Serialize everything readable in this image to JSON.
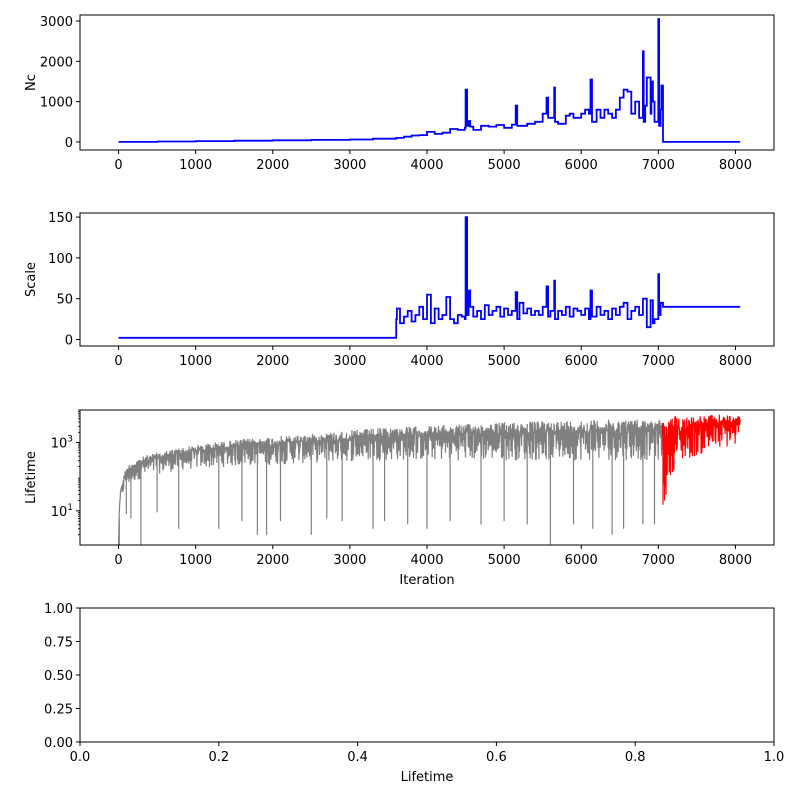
{
  "chart_data": [
    {
      "type": "line",
      "title": "",
      "xlabel": "",
      "ylabel": "Nc",
      "xlim": [
        -500,
        8500
      ],
      "ylim": [
        -200,
        3150
      ],
      "yscale": "linear",
      "grid": false,
      "xticks": [
        0,
        1000,
        2000,
        3000,
        4000,
        5000,
        6000,
        7000,
        8000
      ],
      "xtick_labels": [
        "0",
        "1000",
        "2000",
        "3000",
        "4000",
        "5000",
        "6000",
        "7000",
        "8000"
      ],
      "yticks": [
        0,
        1000,
        2000,
        3000
      ],
      "ytick_labels": [
        "0",
        "1000",
        "2000",
        "3000"
      ],
      "series": [
        {
          "color": "#0000ff",
          "style": "step",
          "x": [
            0,
            500,
            1000,
            1500,
            2000,
            2500,
            3000,
            3300,
            3600,
            3700,
            3800,
            3900,
            4000,
            4100,
            4200,
            4300,
            4400,
            4490,
            4500,
            4520,
            4540,
            4560,
            4600,
            4700,
            4800,
            4900,
            5000,
            5100,
            5150,
            5170,
            5200,
            5300,
            5400,
            5500,
            5550,
            5570,
            5600,
            5650,
            5660,
            5700,
            5800,
            5850,
            5900,
            6000,
            6050,
            6100,
            6120,
            6140,
            6200,
            6250,
            6300,
            6350,
            6400,
            6450,
            6500,
            6550,
            6600,
            6650,
            6700,
            6750,
            6800,
            6810,
            6830,
            6850,
            6900,
            6910,
            6930,
            6950,
            7000,
            7010,
            7030,
            7040,
            7060,
            7070,
            7200,
            8060
          ],
          "y": [
            0,
            10,
            20,
            30,
            40,
            50,
            60,
            80,
            100,
            130,
            160,
            170,
            250,
            200,
            230,
            320,
            300,
            350,
            1300,
            400,
            520,
            380,
            300,
            400,
            380,
            420,
            350,
            430,
            900,
            400,
            400,
            450,
            500,
            700,
            1100,
            600,
            600,
            1350,
            500,
            450,
            650,
            700,
            600,
            700,
            800,
            700,
            1550,
            500,
            800,
            600,
            800,
            700,
            600,
            800,
            1100,
            1300,
            1250,
            700,
            1000,
            600,
            2250,
            500,
            900,
            1600,
            700,
            1500,
            1000,
            500,
            3050,
            400,
            800,
            1400,
            0,
            0,
            0,
            0
          ]
        }
      ]
    },
    {
      "type": "line",
      "title": "",
      "xlabel": "",
      "ylabel": "Scale",
      "xlim": [
        -500,
        8500
      ],
      "ylim": [
        -8,
        155
      ],
      "yscale": "linear",
      "grid": false,
      "xticks": [
        0,
        1000,
        2000,
        3000,
        4000,
        5000,
        6000,
        7000,
        8000
      ],
      "xtick_labels": [
        "0",
        "1000",
        "2000",
        "3000",
        "4000",
        "5000",
        "6000",
        "7000",
        "8000"
      ],
      "yticks": [
        0,
        50,
        100,
        150
      ],
      "ytick_labels": [
        "0",
        "50",
        "100",
        "150"
      ],
      "series": [
        {
          "color": "#0000ff",
          "style": "step",
          "x": [
            0,
            3600,
            3610,
            3650,
            3700,
            3750,
            3800,
            3850,
            3900,
            3950,
            4000,
            4050,
            4100,
            4150,
            4200,
            4250,
            4300,
            4350,
            4400,
            4450,
            4490,
            4500,
            4520,
            4540,
            4560,
            4600,
            4650,
            4700,
            4750,
            4800,
            4850,
            4900,
            4950,
            5000,
            5050,
            5100,
            5150,
            5170,
            5200,
            5250,
            5300,
            5350,
            5400,
            5450,
            5500,
            5550,
            5570,
            5600,
            5650,
            5660,
            5700,
            5750,
            5800,
            5850,
            5900,
            5950,
            6000,
            6050,
            6100,
            6120,
            6140,
            6200,
            6250,
            6300,
            6350,
            6400,
            6450,
            6500,
            6550,
            6600,
            6650,
            6700,
            6750,
            6800,
            6850,
            6900,
            6930,
            6950,
            7000,
            7010,
            7030,
            7060,
            8060
          ],
          "y": [
            2,
            25,
            38,
            20,
            28,
            35,
            22,
            30,
            40,
            25,
            55,
            20,
            38,
            25,
            30,
            52,
            25,
            20,
            30,
            28,
            25,
            150,
            30,
            60,
            40,
            28,
            35,
            25,
            42,
            30,
            35,
            40,
            28,
            38,
            30,
            35,
            58,
            25,
            45,
            32,
            38,
            30,
            35,
            30,
            40,
            65,
            28,
            35,
            72,
            25,
            35,
            30,
            40,
            28,
            38,
            35,
            30,
            38,
            25,
            60,
            28,
            40,
            30,
            35,
            25,
            38,
            30,
            40,
            45,
            25,
            35,
            40,
            30,
            50,
            15,
            48,
            20,
            25,
            80,
            30,
            45,
            40,
            40
          ]
        }
      ]
    },
    {
      "type": "line",
      "title": "",
      "xlabel": "Iteration",
      "ylabel": "Lifetime",
      "xlim": [
        -500,
        8500
      ],
      "ylim": [
        1,
        9000
      ],
      "yscale": "log",
      "grid": false,
      "xticks": [
        0,
        1000,
        2000,
        3000,
        4000,
        5000,
        6000,
        7000,
        8000
      ],
      "xtick_labels": [
        "0",
        "1000",
        "2000",
        "3000",
        "4000",
        "5000",
        "6000",
        "7000",
        "8000"
      ],
      "yticks": [
        10,
        1000
      ],
      "ytick_labels": [
        "10^1",
        "10^3"
      ],
      "series": [
        {
          "color": "#808080",
          "style": "dense",
          "x": [
            0,
            10,
            30,
            60,
            100,
            150,
            200,
            300,
            400,
            500,
            600,
            700,
            800,
            1000,
            1200,
            1500,
            2000,
            2500,
            3000,
            3500,
            4000,
            4500,
            5000,
            5500,
            6000,
            6500,
            7000,
            7050
          ],
          "upper": [
            1,
            10,
            50,
            100,
            180,
            250,
            300,
            380,
            450,
            520,
            580,
            640,
            700,
            850,
            1000,
            1200,
            1500,
            1800,
            2300,
            2800,
            3100,
            3500,
            4000,
            4300,
            4600,
            4800,
            5000,
            5000
          ],
          "base": [
            1,
            5,
            20,
            30,
            50,
            60,
            70,
            90,
            100,
            120,
            130,
            140,
            150,
            170,
            180,
            200,
            220,
            250,
            280,
            300,
            300,
            300,
            300,
            300,
            300,
            300,
            300,
            300
          ],
          "dips": [
            [
              10,
              1
            ],
            [
              100,
              8
            ],
            [
              160,
              6
            ],
            [
              290,
              1
            ],
            [
              500,
              9
            ],
            [
              780,
              3
            ],
            [
              1300,
              3
            ],
            [
              1600,
              5
            ],
            [
              1800,
              2
            ],
            [
              1920,
              2
            ],
            [
              2100,
              5
            ],
            [
              2500,
              2
            ],
            [
              2700,
              6
            ],
            [
              2900,
              5
            ],
            [
              3300,
              3
            ],
            [
              3450,
              5
            ],
            [
              3750,
              4
            ],
            [
              4000,
              3
            ],
            [
              4300,
              5
            ],
            [
              4700,
              4
            ],
            [
              5000,
              5
            ],
            [
              5300,
              4
            ],
            [
              5600,
              1
            ],
            [
              5900,
              4
            ],
            [
              6150,
              3
            ],
            [
              6400,
              2
            ],
            [
              6550,
              3
            ],
            [
              6800,
              4
            ],
            [
              6950,
              4
            ]
          ]
        },
        {
          "color": "#ff0000",
          "style": "dense",
          "x": [
            7050,
            7060,
            7100,
            7200,
            7300,
            7500,
            7700,
            7900,
            8060
          ],
          "upper": [
            4000,
            5000,
            5000,
            6000,
            6500,
            6000,
            6500,
            6800,
            6000
          ],
          "base": [
            300,
            15,
            50,
            150,
            250,
            400,
            550,
            700,
            800
          ],
          "dips": [
            [
              7060,
              15
            ],
            [
              7080,
              20
            ],
            [
              7100,
              30
            ]
          ]
        }
      ]
    },
    {
      "type": "line",
      "title": "",
      "xlabel": "Lifetime",
      "ylabel": "",
      "xlim": [
        0,
        1
      ],
      "ylim": [
        0,
        1
      ],
      "yscale": "linear",
      "grid": false,
      "xticks": [
        0,
        0.2,
        0.4,
        0.6,
        0.8,
        1
      ],
      "xtick_labels": [
        "0.0",
        "0.2",
        "0.4",
        "0.6",
        "0.8",
        "1.0"
      ],
      "yticks": [
        0,
        0.25,
        0.5,
        0.75,
        1
      ],
      "ytick_labels": [
        "0.00",
        "0.25",
        "0.50",
        "0.75",
        "1.00"
      ],
      "series": []
    }
  ]
}
